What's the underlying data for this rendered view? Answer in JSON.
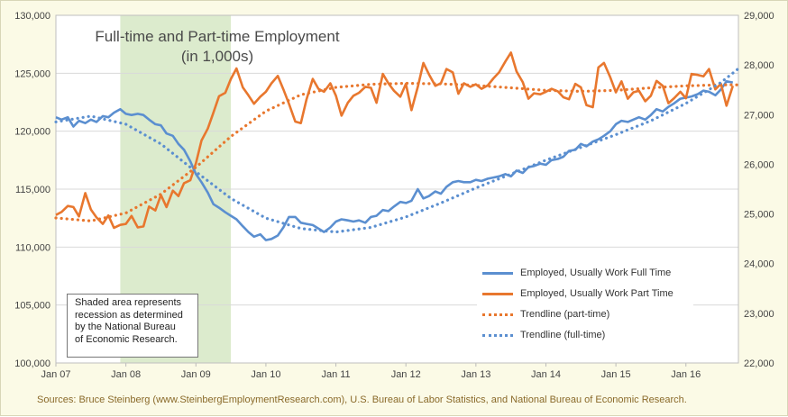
{
  "chart_data": {
    "type": "line",
    "title": "Full-time and Part-time Employment",
    "subtitle": "(in 1,000s)",
    "x_tick_labels": [
      "Jan 07",
      "Jan 08",
      "Jan 09",
      "Jan 10",
      "Jan 11",
      "Jan 12",
      "Jan 13",
      "Jan 14",
      "Jan 15",
      "Jan 16"
    ],
    "y_left": {
      "min": 100000,
      "max": 130000,
      "ticks": [
        "100,000",
        "105,000",
        "110,000",
        "115,000",
        "120,000",
        "125,000",
        "130,000"
      ]
    },
    "y_right": {
      "min": 22000,
      "max": 29000,
      "ticks": [
        "22,000",
        "23,000",
        "24,000",
        "25,000",
        "26,000",
        "27,000",
        "28,000",
        "29,000"
      ]
    },
    "x_range": [
      2007.0,
      2016.75
    ],
    "grid": "horizontal",
    "legend_position": "bottom-right",
    "recession_shade": {
      "start": 2007.92,
      "end": 2009.5,
      "color": "#d6e8c4"
    },
    "series": [
      {
        "name": "Employed, Usually Work Full Time",
        "axis": "left",
        "color": "#5b8fd0",
        "style": "solid",
        "points": [
          [
            2007.0,
            121.2
          ],
          [
            2007.08,
            121.0
          ],
          [
            2007.17,
            121.2
          ],
          [
            2007.25,
            120.4
          ],
          [
            2007.33,
            120.9
          ],
          [
            2007.42,
            120.7
          ],
          [
            2007.5,
            121.0
          ],
          [
            2007.58,
            120.8
          ],
          [
            2007.67,
            121.3
          ],
          [
            2007.75,
            121.2
          ],
          [
            2007.83,
            121.6
          ],
          [
            2007.92,
            121.9
          ],
          [
            2008.0,
            121.5
          ],
          [
            2008.08,
            121.4
          ],
          [
            2008.17,
            121.5
          ],
          [
            2008.25,
            121.4
          ],
          [
            2008.33,
            121.0
          ],
          [
            2008.42,
            120.6
          ],
          [
            2008.5,
            120.5
          ],
          [
            2008.58,
            119.8
          ],
          [
            2008.67,
            119.6
          ],
          [
            2008.75,
            118.9
          ],
          [
            2008.83,
            118.4
          ],
          [
            2008.92,
            117.4
          ],
          [
            2009.0,
            116.3
          ],
          [
            2009.08,
            115.6
          ],
          [
            2009.17,
            114.7
          ],
          [
            2009.25,
            113.7
          ],
          [
            2009.33,
            113.4
          ],
          [
            2009.42,
            113.0
          ],
          [
            2009.5,
            112.7
          ],
          [
            2009.58,
            112.4
          ],
          [
            2009.67,
            111.8
          ],
          [
            2009.75,
            111.3
          ],
          [
            2009.83,
            110.9
          ],
          [
            2009.92,
            111.1
          ],
          [
            2010.0,
            110.6
          ],
          [
            2010.08,
            110.7
          ],
          [
            2010.17,
            111.0
          ],
          [
            2010.25,
            111.7
          ],
          [
            2010.33,
            112.6
          ],
          [
            2010.42,
            112.6
          ],
          [
            2010.5,
            112.1
          ],
          [
            2010.58,
            112.0
          ],
          [
            2010.67,
            111.9
          ],
          [
            2010.75,
            111.6
          ],
          [
            2010.83,
            111.3
          ],
          [
            2010.92,
            111.7
          ],
          [
            2011.0,
            112.2
          ],
          [
            2011.08,
            112.4
          ],
          [
            2011.17,
            112.3
          ],
          [
            2011.25,
            112.2
          ],
          [
            2011.33,
            112.3
          ],
          [
            2011.42,
            112.1
          ],
          [
            2011.5,
            112.6
          ],
          [
            2011.58,
            112.7
          ],
          [
            2011.67,
            113.2
          ],
          [
            2011.75,
            113.1
          ],
          [
            2011.83,
            113.5
          ],
          [
            2011.92,
            113.9
          ],
          [
            2012.0,
            113.8
          ],
          [
            2012.08,
            114.0
          ],
          [
            2012.17,
            115.0
          ],
          [
            2012.25,
            114.2
          ],
          [
            2012.33,
            114.4
          ],
          [
            2012.42,
            114.8
          ],
          [
            2012.5,
            114.6
          ],
          [
            2012.58,
            115.2
          ],
          [
            2012.67,
            115.6
          ],
          [
            2012.75,
            115.7
          ],
          [
            2012.83,
            115.6
          ],
          [
            2012.92,
            115.6
          ],
          [
            2013.0,
            115.8
          ],
          [
            2013.08,
            115.7
          ],
          [
            2013.17,
            115.9
          ],
          [
            2013.25,
            116.0
          ],
          [
            2013.33,
            116.1
          ],
          [
            2013.42,
            116.3
          ],
          [
            2013.5,
            116.1
          ],
          [
            2013.58,
            116.6
          ],
          [
            2013.67,
            116.4
          ],
          [
            2013.75,
            116.9
          ],
          [
            2013.83,
            117.0
          ],
          [
            2013.92,
            117.2
          ],
          [
            2014.0,
            117.1
          ],
          [
            2014.08,
            117.5
          ],
          [
            2014.17,
            117.6
          ],
          [
            2014.25,
            117.8
          ],
          [
            2014.33,
            118.3
          ],
          [
            2014.42,
            118.4
          ],
          [
            2014.5,
            118.9
          ],
          [
            2014.58,
            118.7
          ],
          [
            2014.67,
            119.1
          ],
          [
            2014.75,
            119.3
          ],
          [
            2014.83,
            119.6
          ],
          [
            2014.92,
            120.0
          ],
          [
            2015.0,
            120.6
          ],
          [
            2015.08,
            120.9
          ],
          [
            2015.17,
            120.8
          ],
          [
            2015.25,
            121.0
          ],
          [
            2015.33,
            121.2
          ],
          [
            2015.42,
            121.0
          ],
          [
            2015.5,
            121.4
          ],
          [
            2015.58,
            121.9
          ],
          [
            2015.67,
            121.7
          ],
          [
            2015.75,
            122.1
          ],
          [
            2015.83,
            122.4
          ],
          [
            2015.92,
            122.8
          ],
          [
            2016.0,
            122.9
          ],
          [
            2016.08,
            123.0
          ],
          [
            2016.17,
            123.2
          ],
          [
            2016.25,
            123.5
          ],
          [
            2016.33,
            123.4
          ],
          [
            2016.42,
            123.1
          ],
          [
            2016.5,
            123.6
          ],
          [
            2016.58,
            124.3
          ],
          [
            2016.67,
            124.2
          ]
        ]
      },
      {
        "name": "Employed, Usually Work Part Time",
        "axis": "right",
        "color": "#e8772e",
        "style": "solid",
        "points": [
          [
            2007.0,
            24.98
          ],
          [
            2007.08,
            25.04
          ],
          [
            2007.17,
            25.16
          ],
          [
            2007.25,
            25.14
          ],
          [
            2007.33,
            24.95
          ],
          [
            2007.42,
            25.42
          ],
          [
            2007.5,
            25.09
          ],
          [
            2007.58,
            24.93
          ],
          [
            2007.67,
            24.8
          ],
          [
            2007.75,
            24.97
          ],
          [
            2007.83,
            24.72
          ],
          [
            2007.92,
            24.78
          ],
          [
            2008.0,
            24.8
          ],
          [
            2008.08,
            24.96
          ],
          [
            2008.17,
            24.73
          ],
          [
            2008.25,
            24.75
          ],
          [
            2008.33,
            25.15
          ],
          [
            2008.42,
            25.07
          ],
          [
            2008.5,
            25.38
          ],
          [
            2008.58,
            25.14
          ],
          [
            2008.67,
            25.47
          ],
          [
            2008.75,
            25.36
          ],
          [
            2008.83,
            25.62
          ],
          [
            2008.92,
            25.68
          ],
          [
            2009.0,
            26.02
          ],
          [
            2009.08,
            26.48
          ],
          [
            2009.17,
            26.72
          ],
          [
            2009.25,
            27.04
          ],
          [
            2009.33,
            27.37
          ],
          [
            2009.42,
            27.44
          ],
          [
            2009.5,
            27.72
          ],
          [
            2009.58,
            27.93
          ],
          [
            2009.67,
            27.55
          ],
          [
            2009.75,
            27.39
          ],
          [
            2009.83,
            27.22
          ],
          [
            2009.92,
            27.36
          ],
          [
            2010.0,
            27.46
          ],
          [
            2010.08,
            27.63
          ],
          [
            2010.17,
            27.78
          ],
          [
            2010.25,
            27.51
          ],
          [
            2010.33,
            27.22
          ],
          [
            2010.42,
            26.86
          ],
          [
            2010.5,
            26.83
          ],
          [
            2010.58,
            27.31
          ],
          [
            2010.67,
            27.72
          ],
          [
            2010.75,
            27.52
          ],
          [
            2010.83,
            27.46
          ],
          [
            2010.92,
            27.63
          ],
          [
            2011.0,
            27.38
          ],
          [
            2011.08,
            26.98
          ],
          [
            2011.17,
            27.24
          ],
          [
            2011.25,
            27.38
          ],
          [
            2011.33,
            27.44
          ],
          [
            2011.42,
            27.56
          ],
          [
            2011.5,
            27.54
          ],
          [
            2011.58,
            27.24
          ],
          [
            2011.67,
            27.82
          ],
          [
            2011.75,
            27.63
          ],
          [
            2011.83,
            27.48
          ],
          [
            2011.92,
            27.36
          ],
          [
            2012.0,
            27.62
          ],
          [
            2012.08,
            27.09
          ],
          [
            2012.17,
            27.56
          ],
          [
            2012.25,
            28.04
          ],
          [
            2012.33,
            27.81
          ],
          [
            2012.42,
            27.58
          ],
          [
            2012.5,
            27.63
          ],
          [
            2012.58,
            27.92
          ],
          [
            2012.67,
            27.85
          ],
          [
            2012.75,
            27.42
          ],
          [
            2012.83,
            27.63
          ],
          [
            2012.92,
            27.56
          ],
          [
            2013.0,
            27.61
          ],
          [
            2013.08,
            27.52
          ],
          [
            2013.17,
            27.59
          ],
          [
            2013.25,
            27.73
          ],
          [
            2013.33,
            27.85
          ],
          [
            2013.42,
            28.07
          ],
          [
            2013.5,
            28.25
          ],
          [
            2013.58,
            27.87
          ],
          [
            2013.67,
            27.65
          ],
          [
            2013.75,
            27.32
          ],
          [
            2013.83,
            27.43
          ],
          [
            2013.92,
            27.41
          ],
          [
            2014.0,
            27.46
          ],
          [
            2014.08,
            27.52
          ],
          [
            2014.17,
            27.47
          ],
          [
            2014.25,
            27.35
          ],
          [
            2014.33,
            27.31
          ],
          [
            2014.42,
            27.62
          ],
          [
            2014.5,
            27.55
          ],
          [
            2014.58,
            27.19
          ],
          [
            2014.67,
            27.15
          ],
          [
            2014.75,
            27.95
          ],
          [
            2014.83,
            28.04
          ],
          [
            2014.92,
            27.75
          ],
          [
            2015.0,
            27.45
          ],
          [
            2015.08,
            27.67
          ],
          [
            2015.17,
            27.32
          ],
          [
            2015.25,
            27.45
          ],
          [
            2015.33,
            27.48
          ],
          [
            2015.42,
            27.27
          ],
          [
            2015.5,
            27.38
          ],
          [
            2015.58,
            27.68
          ],
          [
            2015.67,
            27.58
          ],
          [
            2015.75,
            27.23
          ],
          [
            2015.83,
            27.33
          ],
          [
            2015.92,
            27.46
          ],
          [
            2016.0,
            27.33
          ],
          [
            2016.08,
            27.82
          ],
          [
            2016.17,
            27.8
          ],
          [
            2016.25,
            27.77
          ],
          [
            2016.33,
            27.92
          ],
          [
            2016.42,
            27.51
          ],
          [
            2016.5,
            27.62
          ],
          [
            2016.58,
            27.18
          ],
          [
            2016.67,
            27.58
          ]
        ]
      },
      {
        "name": "Trendline (part-time)",
        "axis": "right",
        "color": "#e8772e",
        "style": "dotted",
        "points": [
          [
            2007.0,
            24.92
          ],
          [
            2007.5,
            24.86
          ],
          [
            2008.0,
            25.02
          ],
          [
            2008.5,
            25.4
          ],
          [
            2009.0,
            25.94
          ],
          [
            2009.5,
            26.56
          ],
          [
            2010.0,
            27.07
          ],
          [
            2010.5,
            27.4
          ],
          [
            2011.0,
            27.55
          ],
          [
            2011.5,
            27.61
          ],
          [
            2012.0,
            27.63
          ],
          [
            2012.5,
            27.62
          ],
          [
            2013.0,
            27.59
          ],
          [
            2013.5,
            27.54
          ],
          [
            2014.0,
            27.49
          ],
          [
            2014.5,
            27.47
          ],
          [
            2015.0,
            27.49
          ],
          [
            2015.5,
            27.54
          ],
          [
            2016.0,
            27.58
          ],
          [
            2016.5,
            27.6
          ],
          [
            2016.75,
            27.6
          ]
        ]
      },
      {
        "name": "Trendline (full-time)",
        "axis": "left",
        "color": "#5b8fd0",
        "style": "dotted",
        "points": [
          [
            2007.0,
            120.8
          ],
          [
            2007.5,
            121.3
          ],
          [
            2008.0,
            120.6
          ],
          [
            2008.5,
            118.9
          ],
          [
            2009.0,
            116.5
          ],
          [
            2009.5,
            114.2
          ],
          [
            2010.0,
            112.5
          ],
          [
            2010.5,
            111.6
          ],
          [
            2011.0,
            111.3
          ],
          [
            2011.5,
            111.7
          ],
          [
            2012.0,
            112.6
          ],
          [
            2012.5,
            113.8
          ],
          [
            2013.0,
            115.1
          ],
          [
            2013.5,
            116.3
          ],
          [
            2014.0,
            117.5
          ],
          [
            2014.5,
            118.6
          ],
          [
            2015.0,
            119.7
          ],
          [
            2015.5,
            120.9
          ],
          [
            2016.0,
            122.4
          ],
          [
            2016.5,
            124.2
          ],
          [
            2016.75,
            125.4
          ]
        ]
      }
    ]
  },
  "note": {
    "lines": [
      "Shaded area represents",
      "recession as determined",
      "by the National Bureau",
      "of Economic Research."
    ]
  },
  "source": "Sources: Bruce Steinberg (www.SteinbergEmploymentResearch.com), U.S. Bureau of Labor Statistics, and National Bureau of Economic Research."
}
